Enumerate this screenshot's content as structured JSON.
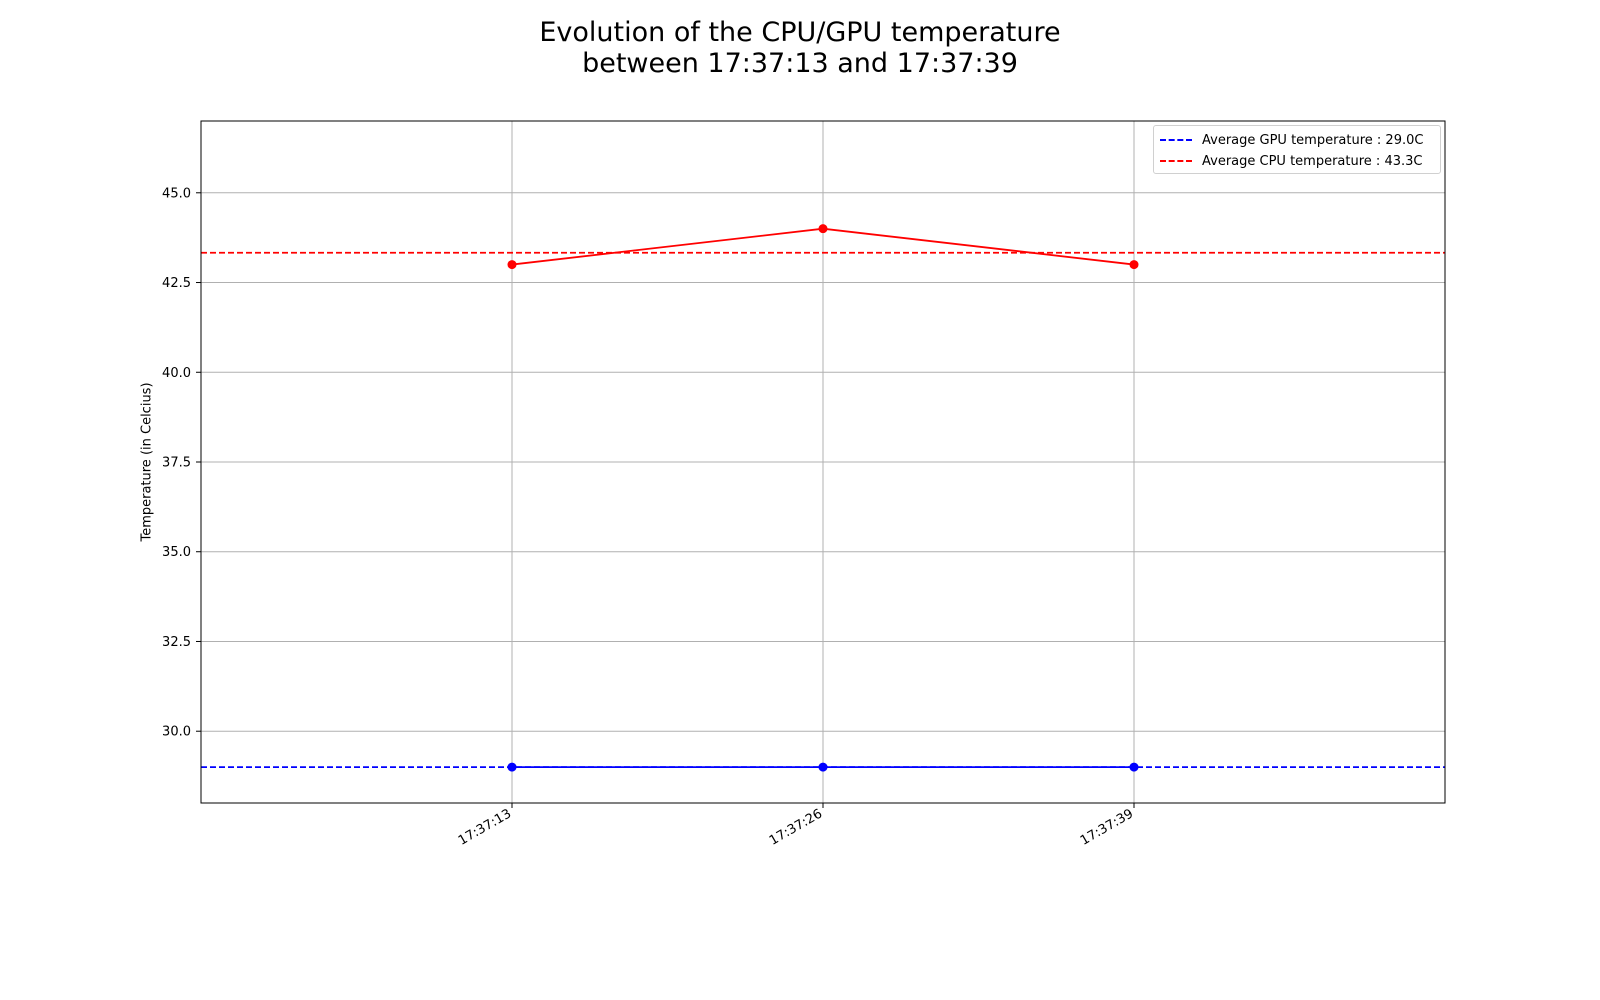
{
  "chart_data": {
    "type": "line",
    "title_line1": "Evolution of the CPU/GPU temperature",
    "title_line2": "between 17:37:13 and 17:37:39",
    "xlabel": "",
    "ylabel": "Temperature (in Celcius)",
    "x": [
      "17:37:13",
      "17:37:26",
      "17:37:39"
    ],
    "xlim": [
      -1,
      3
    ],
    "ylim": [
      28.0,
      47.0
    ],
    "yticks": [
      30.0,
      32.5,
      35.0,
      37.5,
      40.0,
      42.5,
      45.0
    ],
    "grid": true,
    "legend_position": "top-right",
    "series": [
      {
        "key": "cpu",
        "values": [
          43.0,
          44.0,
          43.0
        ],
        "color": "#ff0000",
        "marker": "circle"
      },
      {
        "key": "gpu",
        "values": [
          29.0,
          29.0,
          29.0
        ],
        "color": "#0000ff",
        "marker": "circle"
      }
    ],
    "reference_lines": [
      {
        "label": "Average GPU temperature : 29.0C",
        "value": 29.0,
        "color": "#0000ff",
        "style": "dashed"
      },
      {
        "label": "Average CPU temperature : 43.3C",
        "value": 43.33,
        "color": "#ff0000",
        "style": "dashed"
      }
    ]
  }
}
